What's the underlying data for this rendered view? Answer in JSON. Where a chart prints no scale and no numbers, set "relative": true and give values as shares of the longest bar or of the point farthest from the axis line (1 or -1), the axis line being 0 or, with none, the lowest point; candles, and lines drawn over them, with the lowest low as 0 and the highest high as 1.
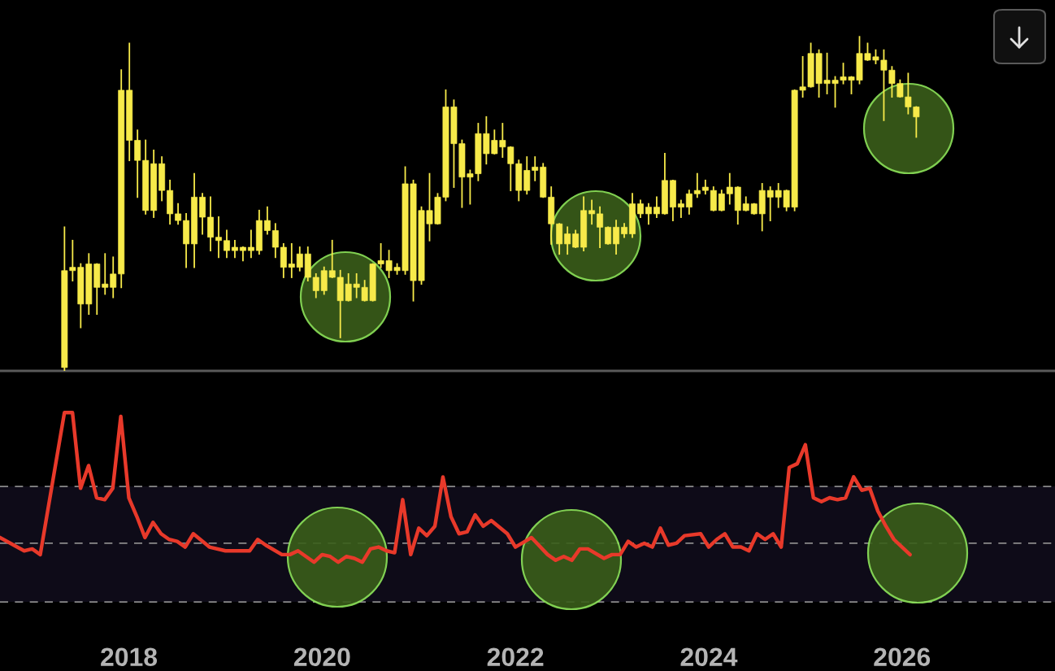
{
  "chart_data": [
    {
      "type": "candlestick",
      "relative": true,
      "color": "#f7ea4a",
      "tick_labels": false,
      "categories": [
        null,
        null,
        null,
        null,
        null,
        null,
        null,
        null,
        null,
        null,
        null,
        null,
        null,
        null,
        null,
        null,
        null,
        null,
        null,
        null,
        null,
        null,
        null,
        null,
        null,
        null,
        null,
        null,
        null,
        null,
        null,
        null,
        null,
        null,
        null,
        null,
        null,
        null,
        null,
        null,
        null,
        null,
        null,
        null,
        null,
        null,
        null,
        null,
        null,
        null,
        null,
        null,
        null,
        null,
        null,
        null,
        null,
        null,
        null,
        null,
        null,
        null,
        null,
        null,
        null,
        null,
        null,
        null,
        null,
        null,
        null,
        null,
        null,
        null,
        null,
        null,
        null,
        null,
        null,
        null,
        null,
        null,
        null,
        null,
        null,
        null,
        null,
        null,
        null,
        null,
        null,
        null,
        null,
        null,
        null,
        null,
        null,
        null,
        null,
        null,
        null,
        null,
        null,
        null,
        null,
        null
      ],
      "ohlc": [
        [
          0.01,
          0.43,
          0,
          0.3
        ],
        [
          0.3,
          0.39,
          0.27,
          0.31
        ],
        [
          0.2,
          0.32,
          0.13,
          0.31
        ],
        [
          0.2,
          0.35,
          0.17,
          0.32
        ],
        [
          0.25,
          0.32,
          0.17,
          0.32
        ],
        [
          0.25,
          0.35,
          0.23,
          0.26
        ],
        [
          0.25,
          0.34,
          0.22,
          0.29
        ],
        [
          0.29,
          0.9,
          0.25,
          0.84
        ],
        [
          0.69,
          0.98,
          0.63,
          0.84
        ],
        [
          0.63,
          0.72,
          0.52,
          0.69
        ],
        [
          0.48,
          0.69,
          0.47,
          0.63
        ],
        [
          0.48,
          0.66,
          0.46,
          0.62
        ],
        [
          0.54,
          0.64,
          0.51,
          0.62
        ],
        [
          0.47,
          0.57,
          0.44,
          0.54
        ],
        [
          0.45,
          0.5,
          0.44,
          0.47
        ],
        [
          0.38,
          0.47,
          0.31,
          0.45
        ],
        [
          0.38,
          0.59,
          0.31,
          0.52
        ],
        [
          0.46,
          0.53,
          0.41,
          0.52
        ],
        [
          0.4,
          0.52,
          0.36,
          0.46
        ],
        [
          0.39,
          0.46,
          0.34,
          0.4
        ],
        [
          0.36,
          0.42,
          0.34,
          0.39
        ],
        [
          0.36,
          0.39,
          0.34,
          0.37
        ],
        [
          0.36,
          0.37,
          0.33,
          0.37
        ],
        [
          0.36,
          0.42,
          0.34,
          0.37
        ],
        [
          0.36,
          0.48,
          0.35,
          0.45
        ],
        [
          0.42,
          0.49,
          0.41,
          0.45
        ],
        [
          0.37,
          0.44,
          0.34,
          0.42
        ],
        [
          0.31,
          0.38,
          0.28,
          0.37
        ],
        [
          0.31,
          0.38,
          0.28,
          0.32
        ],
        [
          0.31,
          0.37,
          0.3,
          0.35
        ],
        [
          0.28,
          0.37,
          0.27,
          0.35
        ],
        [
          0.24,
          0.29,
          0.22,
          0.28
        ],
        [
          0.24,
          0.31,
          0.23,
          0.3
        ],
        [
          0.28,
          0.39,
          0.28,
          0.3
        ],
        [
          0.21,
          0.3,
          0.1,
          0.28
        ],
        [
          0.21,
          0.29,
          0.21,
          0.26
        ],
        [
          0.25,
          0.29,
          0.22,
          0.26
        ],
        [
          0.21,
          0.27,
          0.21,
          0.25
        ],
        [
          0.21,
          0.32,
          0.21,
          0.32
        ],
        [
          0.32,
          0.38,
          0.31,
          0.33
        ],
        [
          0.3,
          0.36,
          0.28,
          0.33
        ],
        [
          0.3,
          0.32,
          0.29,
          0.31
        ],
        [
          0.3,
          0.61,
          0.29,
          0.56
        ],
        [
          0.27,
          0.57,
          0.21,
          0.56
        ],
        [
          0.27,
          0.49,
          0.26,
          0.48
        ],
        [
          0.44,
          0.59,
          0.39,
          0.48
        ],
        [
          0.44,
          0.53,
          0.44,
          0.52
        ],
        [
          0.52,
          0.84,
          0.51,
          0.79
        ],
        [
          0.68,
          0.81,
          0.55,
          0.79
        ],
        [
          0.58,
          0.69,
          0.49,
          0.68
        ],
        [
          0.58,
          0.6,
          0.5,
          0.59
        ],
        [
          0.59,
          0.74,
          0.57,
          0.71
        ],
        [
          0.65,
          0.76,
          0.62,
          0.71
        ],
        [
          0.65,
          0.72,
          0.65,
          0.69
        ],
        [
          0.67,
          0.74,
          0.64,
          0.69
        ],
        [
          0.62,
          0.67,
          0.54,
          0.67
        ],
        [
          0.54,
          0.63,
          0.51,
          0.62
        ],
        [
          0.54,
          0.64,
          0.53,
          0.6
        ],
        [
          0.6,
          0.64,
          0.57,
          0.61
        ],
        [
          0.52,
          0.62,
          0.52,
          0.61
        ],
        [
          0.44,
          0.55,
          0.38,
          0.52
        ],
        [
          0.38,
          0.44,
          0.35,
          0.44
        ],
        [
          0.38,
          0.43,
          0.35,
          0.41
        ],
        [
          0.37,
          0.42,
          0.37,
          0.41
        ],
        [
          0.37,
          0.52,
          0.36,
          0.48
        ],
        [
          0.47,
          0.51,
          0.44,
          0.48
        ],
        [
          0.43,
          0.49,
          0.37,
          0.47
        ],
        [
          0.38,
          0.43,
          0.38,
          0.43
        ],
        [
          0.38,
          0.45,
          0.35,
          0.43
        ],
        [
          0.41,
          0.44,
          0.4,
          0.43
        ],
        [
          0.41,
          0.53,
          0.4,
          0.5
        ],
        [
          0.47,
          0.51,
          0.46,
          0.5
        ],
        [
          0.47,
          0.5,
          0.44,
          0.49
        ],
        [
          0.47,
          0.52,
          0.46,
          0.49
        ],
        [
          0.47,
          0.65,
          0.47,
          0.57
        ],
        [
          0.49,
          0.57,
          0.45,
          0.57
        ],
        [
          0.49,
          0.51,
          0.46,
          0.5
        ],
        [
          0.49,
          0.54,
          0.47,
          0.53
        ],
        [
          0.53,
          0.59,
          0.52,
          0.54
        ],
        [
          0.54,
          0.57,
          0.53,
          0.55
        ],
        [
          0.48,
          0.55,
          0.48,
          0.54
        ],
        [
          0.48,
          0.54,
          0.48,
          0.53
        ],
        [
          0.53,
          0.59,
          0.5,
          0.55
        ],
        [
          0.48,
          0.55,
          0.44,
          0.55
        ],
        [
          0.48,
          0.52,
          0.48,
          0.5
        ],
        [
          0.47,
          0.5,
          0.47,
          0.5
        ],
        [
          0.47,
          0.56,
          0.42,
          0.54
        ],
        [
          0.52,
          0.55,
          0.45,
          0.54
        ],
        [
          0.52,
          0.56,
          0.49,
          0.54
        ],
        [
          0.49,
          0.54,
          0.48,
          0.54
        ],
        [
          0.49,
          0.84,
          0.48,
          0.84
        ],
        [
          0.84,
          0.94,
          0.82,
          0.85
        ],
        [
          0.85,
          0.98,
          0.85,
          0.95
        ],
        [
          0.86,
          0.96,
          0.82,
          0.95
        ],
        [
          0.86,
          0.95,
          0.83,
          0.87
        ],
        [
          0.86,
          0.88,
          0.79,
          0.87
        ],
        [
          0.87,
          0.92,
          0.86,
          0.88
        ],
        [
          0.87,
          0.88,
          0.83,
          0.88
        ],
        [
          0.87,
          1.0,
          0.86,
          0.95
        ],
        [
          0.93,
          0.98,
          0.93,
          0.95
        ],
        [
          0.93,
          0.96,
          0.92,
          0.94
        ],
        [
          0.9,
          0.96,
          0.75,
          0.93
        ],
        [
          0.86,
          0.91,
          0.82,
          0.9
        ],
        [
          0.82,
          0.87,
          0.82,
          0.86
        ],
        [
          0.79,
          0.89,
          0.77,
          0.82
        ],
        [
          0.76,
          0.79,
          0.7,
          0.79
        ]
      ]
    },
    {
      "type": "line",
      "relative": true,
      "tick_labels": "x",
      "xlim": [
        "2016-09",
        "2027-08"
      ],
      "xticks": [
        {
          "value": "2018",
          "label": "2018"
        },
        {
          "value": "2020",
          "label": "2020"
        },
        {
          "value": "2022",
          "label": "2022"
        },
        {
          "value": "2024",
          "label": "2024"
        },
        {
          "value": "2026",
          "label": "2026"
        }
      ],
      "bands": [
        {
          "axis": "y",
          "from": 0,
          "to": 0.61,
          "color": "#0e0b18"
        }
      ],
      "ref_lines": [
        {
          "axis": "y",
          "value": 0.61,
          "color": "#8a8a8a",
          "line_style": "dashed"
        },
        {
          "axis": "y",
          "value": 0.31,
          "color": "#8a8a8a",
          "line_style": "dashed"
        },
        {
          "axis": "y",
          "value": 0,
          "color": "#8a8a8a",
          "line_style": "dashed"
        }
      ],
      "series": [
        {
          "color": "#e8392a",
          "x": [
            "2016-09",
            "2016-12",
            "2017-01",
            "2017-02",
            "2017-05",
            "2017-06",
            "2017-07",
            "2017-08",
            "2017-09",
            "2017-10",
            "2017-11",
            "2017-12",
            "2018-01",
            "2018-02",
            "2018-03",
            "2018-04",
            "2018-05",
            "2018-06",
            "2018-07",
            "2018-08",
            "2018-09",
            "2018-11",
            "2019-01",
            "2019-04",
            "2019-05",
            "2019-06",
            "2019-08",
            "2019-09",
            "2019-10",
            "2019-12",
            "2020-01",
            "2020-02",
            "2020-03",
            "2020-04",
            "2020-05",
            "2020-06",
            "2020-07",
            "2020-08",
            "2020-09",
            "2020-10",
            "2020-11",
            "2020-12",
            "2021-01",
            "2021-02",
            "2021-03",
            "2021-04",
            "2021-05",
            "2021-06",
            "2021-07",
            "2021-08",
            "2021-09",
            "2021-10",
            "2021-12",
            "2022-01",
            "2022-03",
            "2022-05",
            "2022-06",
            "2022-07",
            "2022-08",
            "2022-09",
            "2022-10",
            "2022-12",
            "2023-01",
            "2023-02",
            "2023-03",
            "2023-04",
            "2023-05",
            "2023-06",
            "2023-07",
            "2023-08",
            "2023-09",
            "2023-10",
            "2023-12",
            "2024-01",
            "2024-02",
            "2024-03",
            "2024-04",
            "2024-05",
            "2024-06",
            "2024-07",
            "2024-08",
            "2024-09",
            "2024-10",
            "2024-11",
            "2024-12",
            "2025-01",
            "2025-02",
            "2025-03",
            "2025-04",
            "2025-05",
            "2025-06",
            "2025-07",
            "2025-08",
            "2025-09",
            "2025-10",
            "2025-11",
            "2025-12",
            "2026-01",
            "2026-02"
          ],
          "values": [
            0.34,
            0.27,
            0.28,
            0.25,
            1.0,
            1.0,
            0.6,
            0.72,
            0.55,
            0.54,
            0.6,
            0.98,
            0.55,
            0.45,
            0.34,
            0.42,
            0.36,
            0.33,
            0.32,
            0.29,
            0.36,
            0.29,
            0.27,
            0.27,
            0.33,
            0.3,
            0.25,
            0.25,
            0.27,
            0.21,
            0.25,
            0.24,
            0.21,
            0.24,
            0.23,
            0.21,
            0.28,
            0.29,
            0.27,
            0.26,
            0.54,
            0.25,
            0.39,
            0.35,
            0.4,
            0.66,
            0.45,
            0.36,
            0.37,
            0.46,
            0.4,
            0.43,
            0.36,
            0.29,
            0.34,
            0.25,
            0.22,
            0.24,
            0.22,
            0.28,
            0.28,
            0.23,
            0.25,
            0.25,
            0.32,
            0.29,
            0.31,
            0.29,
            0.39,
            0.3,
            0.31,
            0.35,
            0.36,
            0.29,
            0.33,
            0.36,
            0.29,
            0.29,
            0.27,
            0.36,
            0.33,
            0.36,
            0.29,
            0.71,
            0.73,
            0.83,
            0.55,
            0.53,
            0.55,
            0.54,
            0.55,
            0.66,
            0.59,
            0.6,
            0.48,
            0.4,
            0.33,
            0.29,
            0.25
          ]
        }
      ]
    }
  ]
}
